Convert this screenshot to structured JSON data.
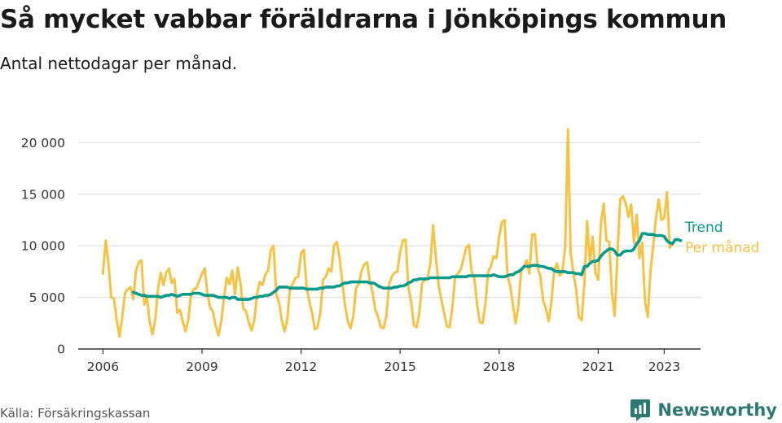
{
  "header": {
    "title": "Så mycket vabbar föräldrarna i Jönköpings kommun",
    "subtitle": "Antal nettodagar per månad."
  },
  "footer": {
    "source": "Källa: Försäkringskassan",
    "brand": "Newsworthy"
  },
  "colors": {
    "trend": "#0a9a8a",
    "monthly": "#f6c244",
    "grid": "#d9d9d9",
    "axis": "#333333",
    "brand": "#2e7a72"
  },
  "icons": {
    "brand_logo": "bar-chart-speech-bubble-icon"
  },
  "chart_data": {
    "type": "line",
    "title": "",
    "xlabel": "",
    "ylabel": "",
    "xlim": [
      2005.25,
      2024.1
    ],
    "ylim": [
      0,
      20000
    ],
    "grid": true,
    "legend_placement": "right-end-of-lines",
    "x_ticks": [
      2006,
      2009,
      2012,
      2015,
      2018,
      2021,
      2023
    ],
    "x_tick_labels": [
      "2006",
      "2009",
      "2012",
      "2015",
      "2018",
      "2021",
      "2023"
    ],
    "y_ticks": [
      0,
      5000,
      10000,
      15000,
      20000
    ],
    "y_tick_labels": [
      "0",
      "5 000",
      "10 000",
      "15 000",
      "20 000"
    ],
    "series": [
      {
        "name": "Per månad",
        "x_start": "2006-01",
        "frequency": "monthly",
        "values": [
          7300,
          10500,
          8300,
          5000,
          4900,
          2800,
          1200,
          3000,
          5400,
          5800,
          6000,
          4800,
          7600,
          8400,
          8600,
          4300,
          5000,
          2600,
          1400,
          2800,
          5800,
          7400,
          6200,
          7400,
          7800,
          6400,
          6800,
          3500,
          3800,
          2700,
          1700,
          2800,
          5300,
          5800,
          5900,
          6600,
          7300,
          7800,
          5300,
          4000,
          3600,
          2200,
          1300,
          2700,
          5000,
          6900,
          6300,
          7600,
          5300,
          7900,
          6300,
          3900,
          3700,
          2600,
          1800,
          2800,
          5300,
          6500,
          6200,
          7200,
          7600,
          9600,
          10000,
          5300,
          4500,
          2800,
          1700,
          2900,
          5900,
          6300,
          6900,
          7000,
          9300,
          9600,
          6100,
          4600,
          3500,
          1900,
          2100,
          3500,
          6700,
          7000,
          7800,
          7500,
          10000,
          10400,
          8800,
          6500,
          4200,
          2700,
          2000,
          3200,
          5900,
          6300,
          7600,
          8200,
          8400,
          6600,
          5500,
          3800,
          3100,
          2100,
          2000,
          3200,
          6300,
          7000,
          7400,
          7500,
          9400,
          10500,
          10600,
          6000,
          4600,
          2300,
          2100,
          3500,
          6400,
          6700,
          6800,
          8300,
          12000,
          8800,
          6200,
          4800,
          3500,
          2200,
          2100,
          4000,
          7000,
          7300,
          7700,
          8700,
          9800,
          10100,
          7500,
          6800,
          4300,
          2600,
          2500,
          4400,
          7500,
          8000,
          9000,
          8800,
          10900,
          12300,
          12500,
          7200,
          6100,
          4300,
          2500,
          4200,
          7600,
          7900,
          8600,
          7300,
          11100,
          11100,
          7900,
          7000,
          4700,
          3900,
          2700,
          4500,
          7600,
          8300,
          7100,
          7500,
          9800,
          21300,
          9300,
          7300,
          5800,
          3100,
          2800,
          6500,
          12400,
          8300,
          10900,
          7400,
          6700,
          12200,
          14100,
          10500,
          10400,
          5500,
          3200,
          9200,
          14500,
          14800,
          14100,
          12800,
          14000,
          10300,
          13000,
          8800,
          10300,
          4600,
          3100,
          7500,
          10000,
          12700,
          14500,
          12500,
          12700,
          15200,
          9800,
          10200
        ]
      },
      {
        "name": "Trend",
        "x_start": "2006-12",
        "frequency": "monthly",
        "values": [
          5500,
          5400,
          5300,
          5200,
          5200,
          5100,
          5100,
          5100,
          5100,
          5100,
          5000,
          5100,
          5200,
          5200,
          5300,
          5200,
          5100,
          5200,
          5300,
          5300,
          5300,
          5300,
          5400,
          5400,
          5400,
          5300,
          5200,
          5200,
          5200,
          5200,
          5100,
          5000,
          5000,
          5000,
          5000,
          4900,
          5000,
          5000,
          4800,
          4800,
          4800,
          4800,
          4800,
          4900,
          5000,
          5000,
          5100,
          5100,
          5200,
          5200,
          5300,
          5500,
          5700,
          6000,
          6000,
          6000,
          6000,
          5900,
          5900,
          5900,
          5900,
          5900,
          5900,
          5800,
          5800,
          5800,
          5800,
          5800,
          5900,
          5900,
          6000,
          6000,
          6000,
          6000,
          6100,
          6100,
          6300,
          6400,
          6400,
          6500,
          6500,
          6500,
          6500,
          6500,
          6500,
          6500,
          6400,
          6400,
          6300,
          6100,
          6000,
          5900,
          5900,
          5900,
          5900,
          6000,
          6000,
          6100,
          6100,
          6200,
          6400,
          6500,
          6700,
          6700,
          6800,
          6800,
          6800,
          6800,
          6900,
          6900,
          6900,
          6900,
          6900,
          6900,
          6900,
          6900,
          7000,
          7000,
          7000,
          7000,
          7000,
          7000,
          7100,
          7100,
          7100,
          7100,
          7100,
          7100,
          7100,
          7100,
          7100,
          7200,
          7100,
          7000,
          7000,
          7000,
          7100,
          7200,
          7200,
          7400,
          7500,
          7700,
          8000,
          8000,
          8000,
          8100,
          8100,
          8100,
          8000,
          8000,
          7900,
          7800,
          7800,
          7600,
          7500,
          7500,
          7500,
          7500,
          7400,
          7400,
          7400,
          7300,
          7300,
          7200,
          8000,
          8000,
          8300,
          8500,
          8500,
          8600,
          9000,
          9300,
          9500,
          9700,
          9700,
          9500,
          9100,
          9100,
          9400,
          9500,
          9500,
          9500,
          9700,
          10200,
          10500,
          11200,
          11200,
          11100,
          11100,
          11100,
          11000,
          11000,
          11000,
          10900,
          10500,
          10300,
          10200,
          10600,
          10600,
          10500
        ]
      }
    ]
  }
}
